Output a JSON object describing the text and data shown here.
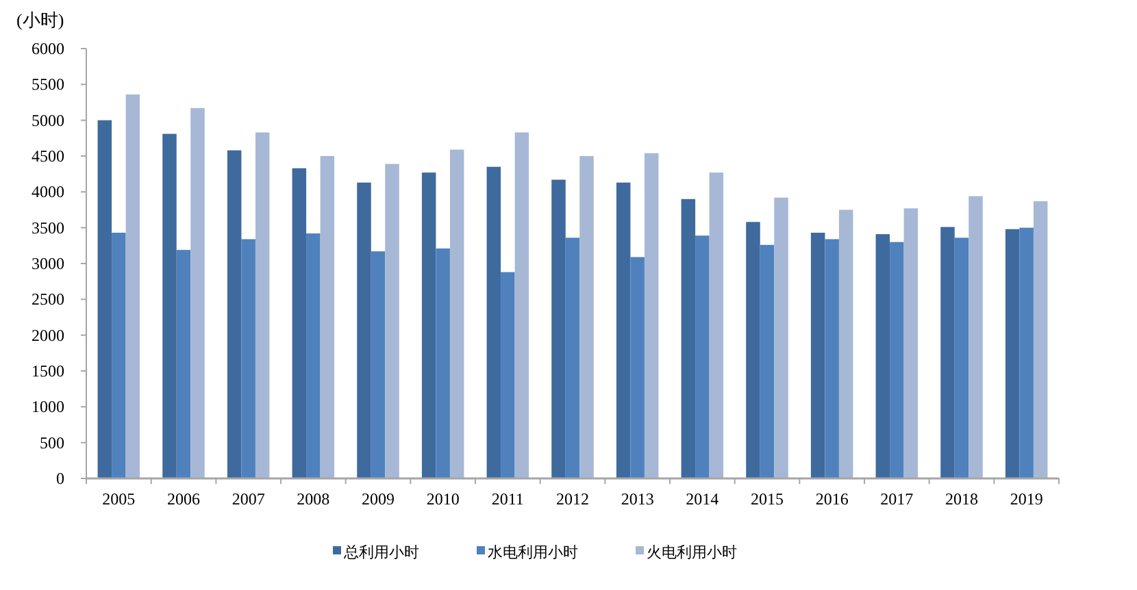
{
  "chart_data": {
    "type": "bar",
    "ylabel": "(小时)",
    "categories": [
      "2005",
      "2006",
      "2007",
      "2008",
      "2009",
      "2010",
      "2011",
      "2012",
      "2013",
      "2014",
      "2015",
      "2016",
      "2017",
      "2018",
      "2019"
    ],
    "series": [
      {
        "name": "总利用小时",
        "color": "#3f6a9e",
        "values": [
          5000,
          4810,
          4580,
          4330,
          4130,
          4270,
          4350,
          4170,
          4130,
          3900,
          3580,
          3430,
          3410,
          3510,
          3480
        ]
      },
      {
        "name": "水电利用小时",
        "color": "#4f81bd",
        "values": [
          3430,
          3190,
          3340,
          3420,
          3170,
          3210,
          2880,
          3360,
          3090,
          3390,
          3260,
          3340,
          3300,
          3360,
          3500
        ]
      },
      {
        "name": "火电利用小时",
        "color": "#a7b8d6",
        "values": [
          5360,
          5170,
          4830,
          4500,
          4390,
          4590,
          4830,
          4500,
          4540,
          4270,
          3920,
          3750,
          3770,
          3940,
          3870
        ]
      }
    ],
    "ylim": [
      0,
      6000
    ],
    "yticks": [
      0,
      500,
      1000,
      1500,
      2000,
      2500,
      3000,
      3500,
      4000,
      4500,
      5000,
      5500,
      6000
    ],
    "grid": false,
    "legend": "bottom"
  }
}
